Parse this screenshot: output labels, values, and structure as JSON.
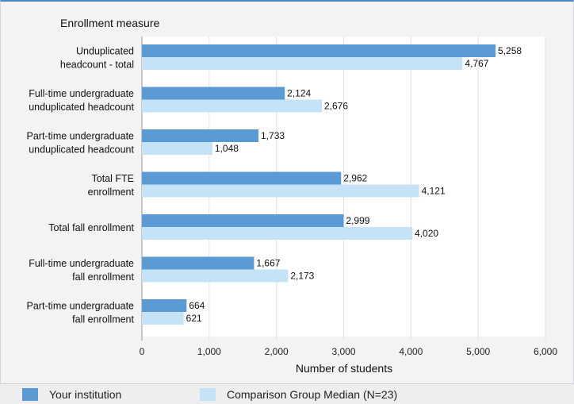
{
  "chart_data": {
    "type": "bar",
    "orientation": "horizontal",
    "title": "Enrollment measure",
    "xlabel": "Number of students",
    "ylabel": "",
    "xlim": [
      0,
      6000
    ],
    "x_ticks": [
      0,
      1000,
      2000,
      3000,
      4000,
      5000,
      6000
    ],
    "x_tick_labels": [
      "0",
      "1,000",
      "2,000",
      "3,000",
      "4,000",
      "5,000",
      "6,000"
    ],
    "grid": true,
    "legend_position": "bottom",
    "categories": [
      [
        "Unduplicated",
        "headcount - total"
      ],
      [
        "Full-time undergraduate",
        "unduplicated headcount"
      ],
      [
        "Part-time undergraduate",
        "unduplicated headcount"
      ],
      [
        "Total FTE",
        "enrollment"
      ],
      [
        "Total fall enrollment"
      ],
      [
        "Full-time undergraduate",
        "fall enrollment"
      ],
      [
        "Part-time undergraduate",
        "fall enrollment"
      ]
    ],
    "series": [
      {
        "name": "Your institution",
        "color": "#5b9bd5",
        "values": [
          5258,
          2124,
          1733,
          2962,
          2999,
          1667,
          664
        ],
        "labels": [
          "5,258",
          "2,124",
          "1,733",
          "2,962",
          "2,999",
          "1,667",
          "664"
        ]
      },
      {
        "name": "Comparison Group Median (N=23)",
        "color": "#c5e3f7",
        "values": [
          4767,
          2676,
          1048,
          4121,
          4020,
          2173,
          621
        ],
        "labels": [
          "4,767",
          "2,676",
          "1,048",
          "4,121",
          "4,020",
          "2,173",
          "621"
        ]
      }
    ]
  }
}
